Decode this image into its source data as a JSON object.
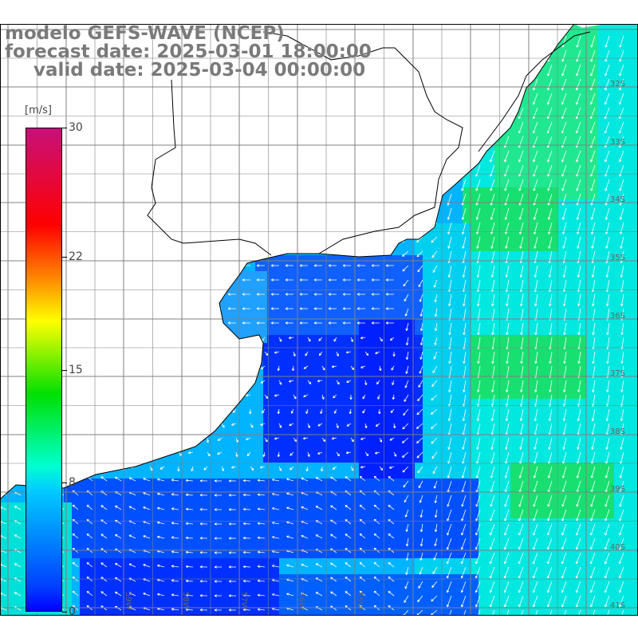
{
  "title": {
    "line1": "modelo GEFS-WAVE (NCEP)",
    "line2": "forecast date: 2025-03-01 18:00:00",
    "line3": "valid date: 2025-03-04 00:00:00"
  },
  "colorbar": {
    "unit": "[m/s]",
    "ticks": [
      "30",
      "22",
      "15",
      "8",
      "0"
    ],
    "tick_values": [
      30,
      22,
      15,
      8,
      0
    ],
    "min": 0,
    "max": 30,
    "colors": [
      "#c8107a",
      "#ff0000",
      "#ff7a00",
      "#ffff00",
      "#00e000",
      "#00ffd0",
      "#00ccff",
      "#0040ff",
      "#0000ff"
    ]
  },
  "lat_labels": [
    "32S",
    "33S",
    "34S",
    "35S",
    "36S",
    "37S",
    "38S",
    "39S",
    "40S",
    "41S"
  ],
  "lon_labels": [
    "59W",
    "58W",
    "57W",
    "56W",
    "55W"
  ],
  "colors": {
    "land": "#ffffff",
    "grid": "#808080",
    "coast": "#000000",
    "arrow": "#ffffff",
    "title_text": "#7a7a7a"
  }
}
